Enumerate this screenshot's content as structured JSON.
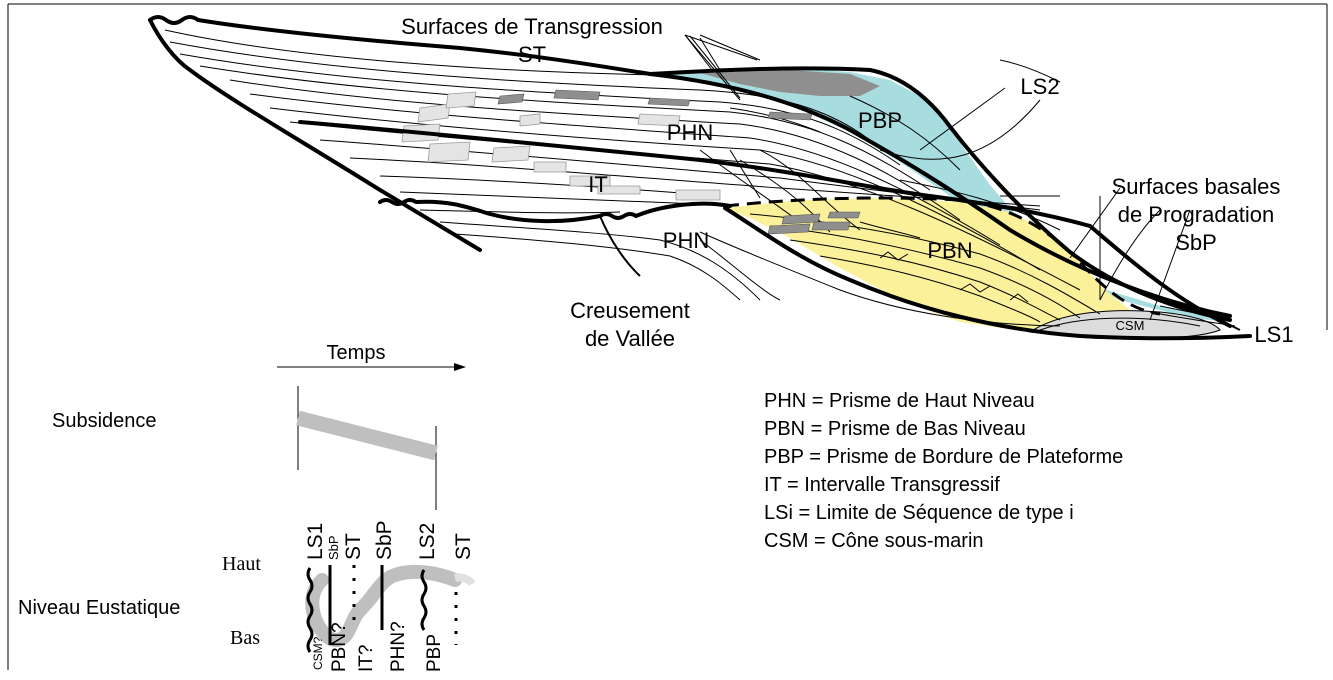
{
  "colors": {
    "pbp_fill": "#a8dde0",
    "pbn_fill": "#fbf19a",
    "gray_block": "#8f8f8f",
    "light_block": "#e4e4e4",
    "csm_fill": "#dcdcdc",
    "curve_gray": "#bfbfbf"
  },
  "cross_section": {
    "labels": {
      "surfaces_transgression_line1": "Surfaces de Transgression",
      "surfaces_transgression_line2": "ST",
      "ls2": "LS2",
      "pbp": "PBP",
      "phn_upper": "PHN",
      "it": "IT",
      "surfaces_basales_line1": "Surfaces basales",
      "surfaces_basales_line2": "de Progradation",
      "surfaces_basales_line3": "SbP",
      "pbn": "PBN",
      "phn_lower": "PHN",
      "creusement_line1": "Creusement",
      "creusement_line2": "de Vallée",
      "csm": "CSM",
      "ls1": "LS1"
    }
  },
  "timeline": {
    "temps": "Temps",
    "subsidence": "Subsidence",
    "niveau_eustatique": "Niveau Eustatique",
    "haut": "Haut",
    "bas": "Bas",
    "top_labels": [
      "LS1",
      "SbP",
      "ST",
      "SbP",
      "LS2",
      "ST"
    ],
    "bottom_labels": [
      "CSM?",
      "PBN?",
      "IT?",
      "PHN?",
      "PBP"
    ]
  },
  "legend": [
    "PHN = Prisme de Haut Niveau",
    "PBN = Prisme de Bas Niveau",
    "PBP = Prisme de Bordure de Plateforme",
    "IT = Intervalle Transgressif",
    "LSi = Limite de Séquence de type i",
    "CSM = Cône sous-marin"
  ]
}
